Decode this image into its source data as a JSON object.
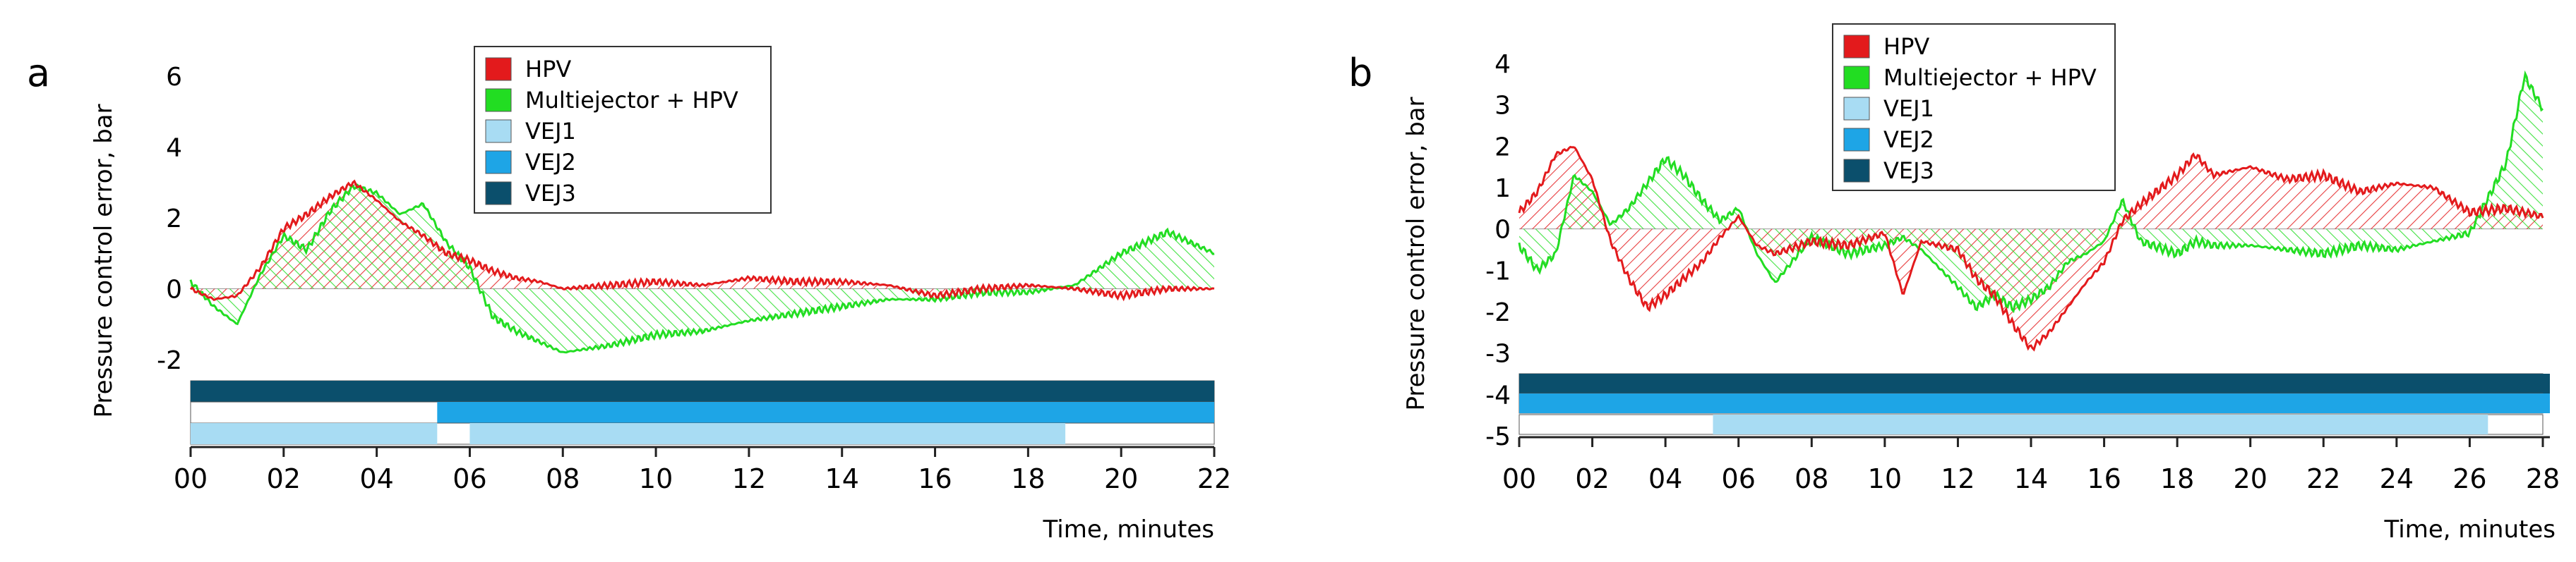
{
  "chart_data": [
    {
      "type": "line",
      "panel_label": "a",
      "ylabel": "Pressure control error, bar",
      "xlabel": "Time, minutes",
      "ylim": [
        -2,
        6
      ],
      "y_ticks": [
        -2,
        0,
        2,
        4,
        6
      ],
      "y_tick_labels": [
        "-2",
        "0",
        "2",
        "4",
        "6"
      ],
      "xlim": [
        0,
        22
      ],
      "x_ticks": [
        0,
        2,
        4,
        6,
        8,
        10,
        12,
        14,
        16,
        18,
        20,
        22
      ],
      "x_tick_labels": [
        "00",
        "02",
        "04",
        "06",
        "08",
        "10",
        "12",
        "14",
        "16",
        "18",
        "20",
        "22"
      ],
      "legend": {
        "position": "top-center",
        "entries": [
          {
            "label": "HPV",
            "color": "#e31a1c"
          },
          {
            "label": "Multiejector + HPV",
            "color": "#22dd22"
          },
          {
            "label": "VEJ1",
            "color": "#a8dcf3"
          },
          {
            "label": "VEJ2",
            "color": "#1ea5e6"
          },
          {
            "label": "VEJ3",
            "color": "#0b4f6c"
          }
        ]
      },
      "series": [
        {
          "name": "HPV",
          "color": "#e31a1c",
          "x": [
            0,
            0.5,
            1,
            1.5,
            2,
            2.5,
            3,
            3.5,
            4,
            4.5,
            5,
            5.5,
            6,
            6.5,
            7,
            7.5,
            8,
            9,
            10,
            11,
            12,
            13,
            14,
            15,
            16,
            17,
            18,
            19,
            20,
            21,
            22
          ],
          "values": [
            0,
            -0.3,
            -0.2,
            0.6,
            1.7,
            2.1,
            2.6,
            3.0,
            2.5,
            1.9,
            1.5,
            1.0,
            0.8,
            0.5,
            0.3,
            0.2,
            0.0,
            0.1,
            0.2,
            0.1,
            0.3,
            0.2,
            0.2,
            0.1,
            -0.2,
            0.0,
            0.1,
            0.0,
            -0.2,
            0.0,
            0.0
          ]
        },
        {
          "name": "Multiejector + HPV",
          "color": "#22dd22",
          "x": [
            0,
            0.5,
            1,
            1.5,
            2,
            2.5,
            3,
            3.5,
            4,
            4.5,
            5,
            5.5,
            6,
            6.5,
            7,
            7.5,
            8,
            9,
            10,
            11,
            12,
            13,
            14,
            15,
            16,
            17,
            18,
            19,
            20,
            21,
            22
          ],
          "values": [
            0.2,
            -0.5,
            -1.0,
            0.4,
            1.5,
            1.1,
            2.2,
            2.9,
            2.7,
            2.1,
            2.4,
            1.3,
            0.6,
            -0.8,
            -1.2,
            -1.5,
            -1.8,
            -1.6,
            -1.3,
            -1.2,
            -0.9,
            -0.7,
            -0.5,
            -0.3,
            -0.3,
            -0.1,
            -0.1,
            0.1,
            1.0,
            1.6,
            1.0
          ]
        }
      ],
      "bands": [
        {
          "name": "VEJ3",
          "color": "#0b4f6c",
          "segments": [
            [
              0,
              22
            ]
          ]
        },
        {
          "name": "VEJ2",
          "color": "#1ea5e6",
          "segments": [
            [
              5.3,
              22
            ]
          ]
        },
        {
          "name": "VEJ1",
          "color": "#a8dcf3",
          "segments": [
            [
              0,
              5.3
            ],
            [
              6,
              18.8
            ]
          ]
        }
      ]
    },
    {
      "type": "line",
      "panel_label": "b",
      "ylabel": "Pressure control error, bar",
      "xlabel": "Time, minutes",
      "ylim": [
        -5,
        4
      ],
      "y_ticks": [
        -5,
        -4,
        -3,
        -2,
        -1,
        0,
        1,
        2,
        3,
        4
      ],
      "y_tick_labels": [
        "-5",
        "-4",
        "-3",
        "-2",
        "-1",
        "0",
        "1",
        "2",
        "3",
        "4"
      ],
      "xlim": [
        0,
        28
      ],
      "x_ticks": [
        0,
        2,
        4,
        6,
        8,
        10,
        12,
        14,
        16,
        18,
        20,
        22,
        24,
        26,
        28
      ],
      "x_tick_labels": [
        "00",
        "02",
        "04",
        "06",
        "08",
        "10",
        "12",
        "14",
        "16",
        "18",
        "20",
        "22",
        "24",
        "26",
        "28"
      ],
      "legend": {
        "position": "top-left",
        "entries": [
          {
            "label": "HPV",
            "color": "#e31a1c"
          },
          {
            "label": "Multiejector + HPV",
            "color": "#22dd22"
          },
          {
            "label": "VEJ1",
            "color": "#a8dcf3"
          },
          {
            "label": "VEJ2",
            "color": "#1ea5e6"
          },
          {
            "label": "VEJ3",
            "color": "#0b4f6c"
          }
        ]
      },
      "series": [
        {
          "name": "HPV",
          "color": "#e31a1c",
          "x": [
            0,
            0.5,
            1,
            1.5,
            2,
            2.5,
            3,
            3.5,
            4,
            4.5,
            5,
            5.5,
            6,
            6.5,
            7,
            8,
            9,
            10,
            10.5,
            11,
            12,
            12.5,
            13,
            13.5,
            14,
            14.5,
            15,
            15.5,
            16,
            16.5,
            17,
            18,
            18.5,
            19,
            20,
            21,
            22,
            23,
            24,
            25,
            26,
            27,
            28
          ],
          "values": [
            0.4,
            0.9,
            1.8,
            2.0,
            1.2,
            -0.3,
            -1.2,
            -1.9,
            -1.6,
            -1.2,
            -0.8,
            -0.2,
            0.3,
            -0.4,
            -0.6,
            -0.3,
            -0.4,
            -0.1,
            -1.6,
            -0.3,
            -0.5,
            -1.2,
            -1.6,
            -2.3,
            -2.9,
            -2.5,
            -1.9,
            -1.3,
            -0.8,
            0.2,
            0.6,
            1.3,
            1.8,
            1.3,
            1.5,
            1.2,
            1.3,
            0.9,
            1.1,
            1.0,
            0.4,
            0.5,
            0.3
          ]
        },
        {
          "name": "Multiejector + HPV",
          "color": "#22dd22",
          "x": [
            0,
            0.5,
            1,
            1.5,
            2,
            2.5,
            3,
            3.5,
            4,
            4.5,
            5,
            5.5,
            6,
            6.5,
            7,
            8,
            9,
            10,
            10.5,
            11,
            12,
            12.5,
            13,
            13.5,
            14,
            14.5,
            15,
            15.5,
            16,
            16.5,
            17,
            18,
            18.5,
            19,
            20,
            21,
            22,
            23,
            24,
            25,
            26,
            27,
            27.5,
            28
          ],
          "values": [
            -0.4,
            -1.0,
            -0.6,
            1.3,
            0.9,
            0.1,
            0.5,
            1.1,
            1.7,
            1.3,
            0.7,
            0.2,
            0.5,
            -0.6,
            -1.3,
            -0.2,
            -0.6,
            -0.4,
            -0.2,
            -0.5,
            -1.4,
            -1.9,
            -1.6,
            -1.9,
            -1.7,
            -1.4,
            -0.8,
            -0.6,
            -0.3,
            0.7,
            -0.3,
            -0.6,
            -0.3,
            -0.4,
            -0.4,
            -0.5,
            -0.6,
            -0.4,
            -0.5,
            -0.3,
            -0.1,
            1.6,
            3.7,
            2.9
          ]
        }
      ],
      "bands": [
        {
          "name": "VEJ3",
          "color": "#0b4f6c",
          "segments": [
            [
              0,
              28.3
            ]
          ]
        },
        {
          "name": "VEJ2",
          "color": "#1ea5e6",
          "segments": [
            [
              0,
              28.3
            ]
          ]
        },
        {
          "name": "VEJ1",
          "color": "#a8dcf3",
          "segments": [
            [
              5.3,
              26.5
            ]
          ]
        }
      ]
    }
  ]
}
